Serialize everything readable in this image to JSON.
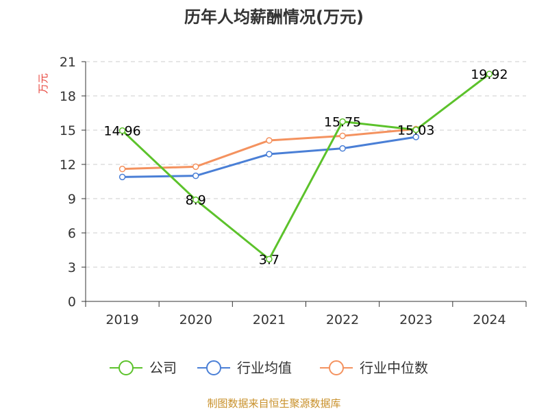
{
  "chart_data": {
    "type": "line",
    "title": "历年人均薪酬情况(万元)",
    "ylabel": "万元",
    "categories": [
      "2019",
      "2020",
      "2021",
      "2022",
      "2023",
      "2024"
    ],
    "ylim": [
      0,
      21
    ],
    "yticks": [
      0,
      3,
      6,
      9,
      12,
      15,
      18,
      21
    ],
    "grid": true,
    "legend_position": "bottom",
    "series": [
      {
        "name": "公司",
        "color": "#5cc22b",
        "values": [
          14.96,
          8.9,
          3.7,
          15.75,
          15.03,
          19.92
        ],
        "labels": [
          "14.96",
          "8.9",
          "3.7",
          "15.75",
          "15.03",
          "19.92"
        ]
      },
      {
        "name": "行业均值",
        "color": "#4a7fd6",
        "values": [
          10.9,
          11.0,
          12.9,
          13.4,
          14.4,
          null
        ]
      },
      {
        "name": "行业中位数",
        "color": "#f4925f",
        "values": [
          11.6,
          11.8,
          14.1,
          14.5,
          15.1,
          null
        ]
      }
    ]
  },
  "source_note": "制图数据来自恒生聚源数据库"
}
